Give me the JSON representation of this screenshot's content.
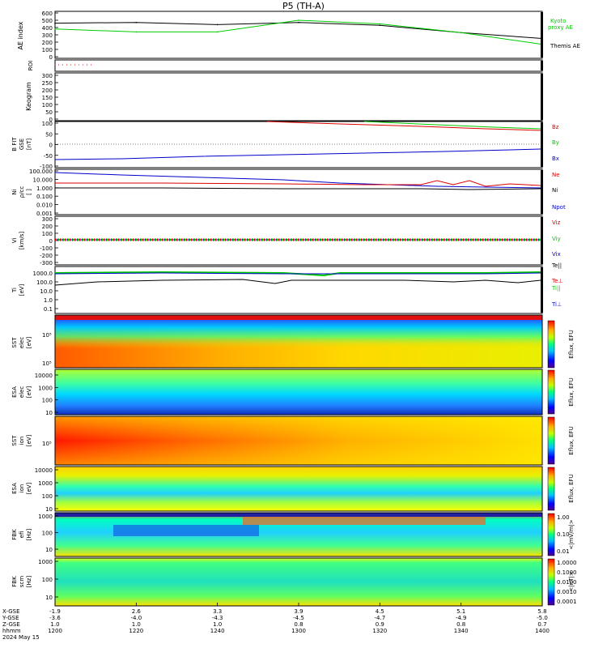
{
  "title": "P5 (TH-A)",
  "date": "2024 May 15",
  "panels": {
    "ae": {
      "ylabel": "AE index",
      "ticks": [
        "600",
        "500",
        "400",
        "300",
        "200",
        "100",
        "0"
      ],
      "legend": [
        {
          "text": "Kyoto",
          "color": "#00cc00"
        },
        {
          "text": "proxy AE",
          "color": "#00cc00"
        },
        {
          "text": "Themis AE",
          "color": "#000000"
        }
      ]
    },
    "roi": {
      "ylabel": "ROI"
    },
    "keogram": {
      "ylabel": "Keogram",
      "ticks": [
        "300",
        "250",
        "200",
        "150",
        "100",
        "50",
        "0"
      ]
    },
    "bfield": {
      "ylabel": [
        "B FIT",
        "GSE",
        "[nT]"
      ],
      "ticks": [
        "100",
        "50",
        "0",
        "-50",
        "-100"
      ],
      "legend": [
        {
          "text": "Bz",
          "color": "#dd0000"
        },
        {
          "text": "By",
          "color": "#00cc00"
        },
        {
          "text": "Bx",
          "color": "#0000cc"
        }
      ]
    },
    "density": {
      "ylabel": [
        "Ni",
        "ρ/cc",
        "[ ]"
      ],
      "ticks": [
        "100.000",
        "10.000",
        "1.000",
        "0.100",
        "0.010",
        "0.001"
      ],
      "legend": [
        {
          "text": "Ne",
          "color": "#dd0000"
        },
        {
          "text": "Ni",
          "color": "#000000"
        },
        {
          "text": "Npot",
          "color": "#0000cc"
        }
      ]
    },
    "velocity": {
      "ylabel": [
        "Vi",
        "[km/s]"
      ],
      "ticks": [
        "300",
        "200",
        "100",
        "0",
        "-100",
        "-200",
        "-300"
      ],
      "legend": [
        {
          "text": "Viz",
          "color": "#dd0000"
        },
        {
          "text": "Viy",
          "color": "#00cc00"
        },
        {
          "text": "Vix",
          "color": "#0000cc"
        },
        {
          "text": "Te||",
          "color": "#000000"
        }
      ]
    },
    "temperature": {
      "ylabel": [
        "Ti",
        "[eV]"
      ],
      "ticks": [
        "1000.0",
        "100.0",
        "10.0",
        "1.0",
        "0.1"
      ],
      "legend": [
        {
          "text": "Te⊥",
          "color": "#dd0000"
        },
        {
          "text": "Ti||",
          "color": "#00cc00"
        },
        {
          "text": "Ti⊥",
          "color": "#0000cc"
        }
      ]
    },
    "sst_e": {
      "ylabel": [
        "SST",
        "elec",
        "[eV]"
      ],
      "cbar": "Eflux, EFU"
    },
    "esa_e": {
      "ylabel": [
        "ESA",
        "elec",
        "[eV]"
      ],
      "ticks": [
        "10000",
        "1000",
        "100",
        "10"
      ],
      "cbar": "Eflux, EFU"
    },
    "sst_i": {
      "ylabel": [
        "SST",
        "ion",
        "[eV]"
      ],
      "cbar": "Eflux, EFU"
    },
    "esa_i": {
      "ylabel": [
        "ESA",
        "ion",
        "[eV]"
      ],
      "ticks": [
        "10000",
        "1000",
        "100",
        "10"
      ],
      "cbar": "Eflux, EFU"
    },
    "fbk_e": {
      "ylabel": [
        "FBK",
        "efi",
        "[Hz]"
      ],
      "ticks": [
        "1000",
        "100",
        "10"
      ],
      "cbar": "<|mV/m|>",
      "cticks": [
        "1.00",
        "0.10",
        "0.01"
      ]
    },
    "fbk_b": {
      "ylabel": [
        "FBK",
        "scm",
        "[Hz]"
      ],
      "ticks": [
        "1000",
        "100",
        "10"
      ],
      "cbar": "<|nT|>",
      "cticks": [
        "1.0000",
        "0.1000",
        "0.0100",
        "0.0010",
        "0.0001"
      ]
    }
  },
  "xaxis": {
    "row_labels": [
      "X-GSE",
      "Y-GSE",
      "Z-GSE",
      "hhmm",
      "2024 May 15"
    ],
    "columns": [
      {
        "x": "-1.9",
        "y": "-3.6",
        "z": "1.0",
        "t": "1200"
      },
      {
        "x": "2.6",
        "y": "-4.0",
        "z": "1.0",
        "t": "1220"
      },
      {
        "x": "3.3",
        "y": "-4.3",
        "z": "1.0",
        "t": "1240"
      },
      {
        "x": "3.9",
        "y": "-4.5",
        "z": "0.8",
        "t": "1300"
      },
      {
        "x": "4.5",
        "y": "-4.7",
        "z": "0.9",
        "t": "1320"
      },
      {
        "x": "5.1",
        "y": "-4.9",
        "z": "0.8",
        "t": "1340"
      },
      {
        "x": "5.8",
        "y": "-5.0",
        "z": "0.7",
        "t": "1400"
      }
    ]
  },
  "chart_data": {
    "type": "line",
    "title": "P5 (TH-A)",
    "x": [
      "1200",
      "1220",
      "1240",
      "1300",
      "1320",
      "1340",
      "1400"
    ],
    "xlabel": "hhmm",
    "series": [
      {
        "name": "Themis AE",
        "values": [
          460,
          470,
          440,
          470,
          430,
          330,
          250
        ]
      },
      {
        "name": "Kyoto proxy AE",
        "values": [
          380,
          340,
          340,
          500,
          450,
          330,
          170
        ]
      }
    ],
    "ylabel": "AE index",
    "ylim": [
      0,
      600
    ]
  }
}
